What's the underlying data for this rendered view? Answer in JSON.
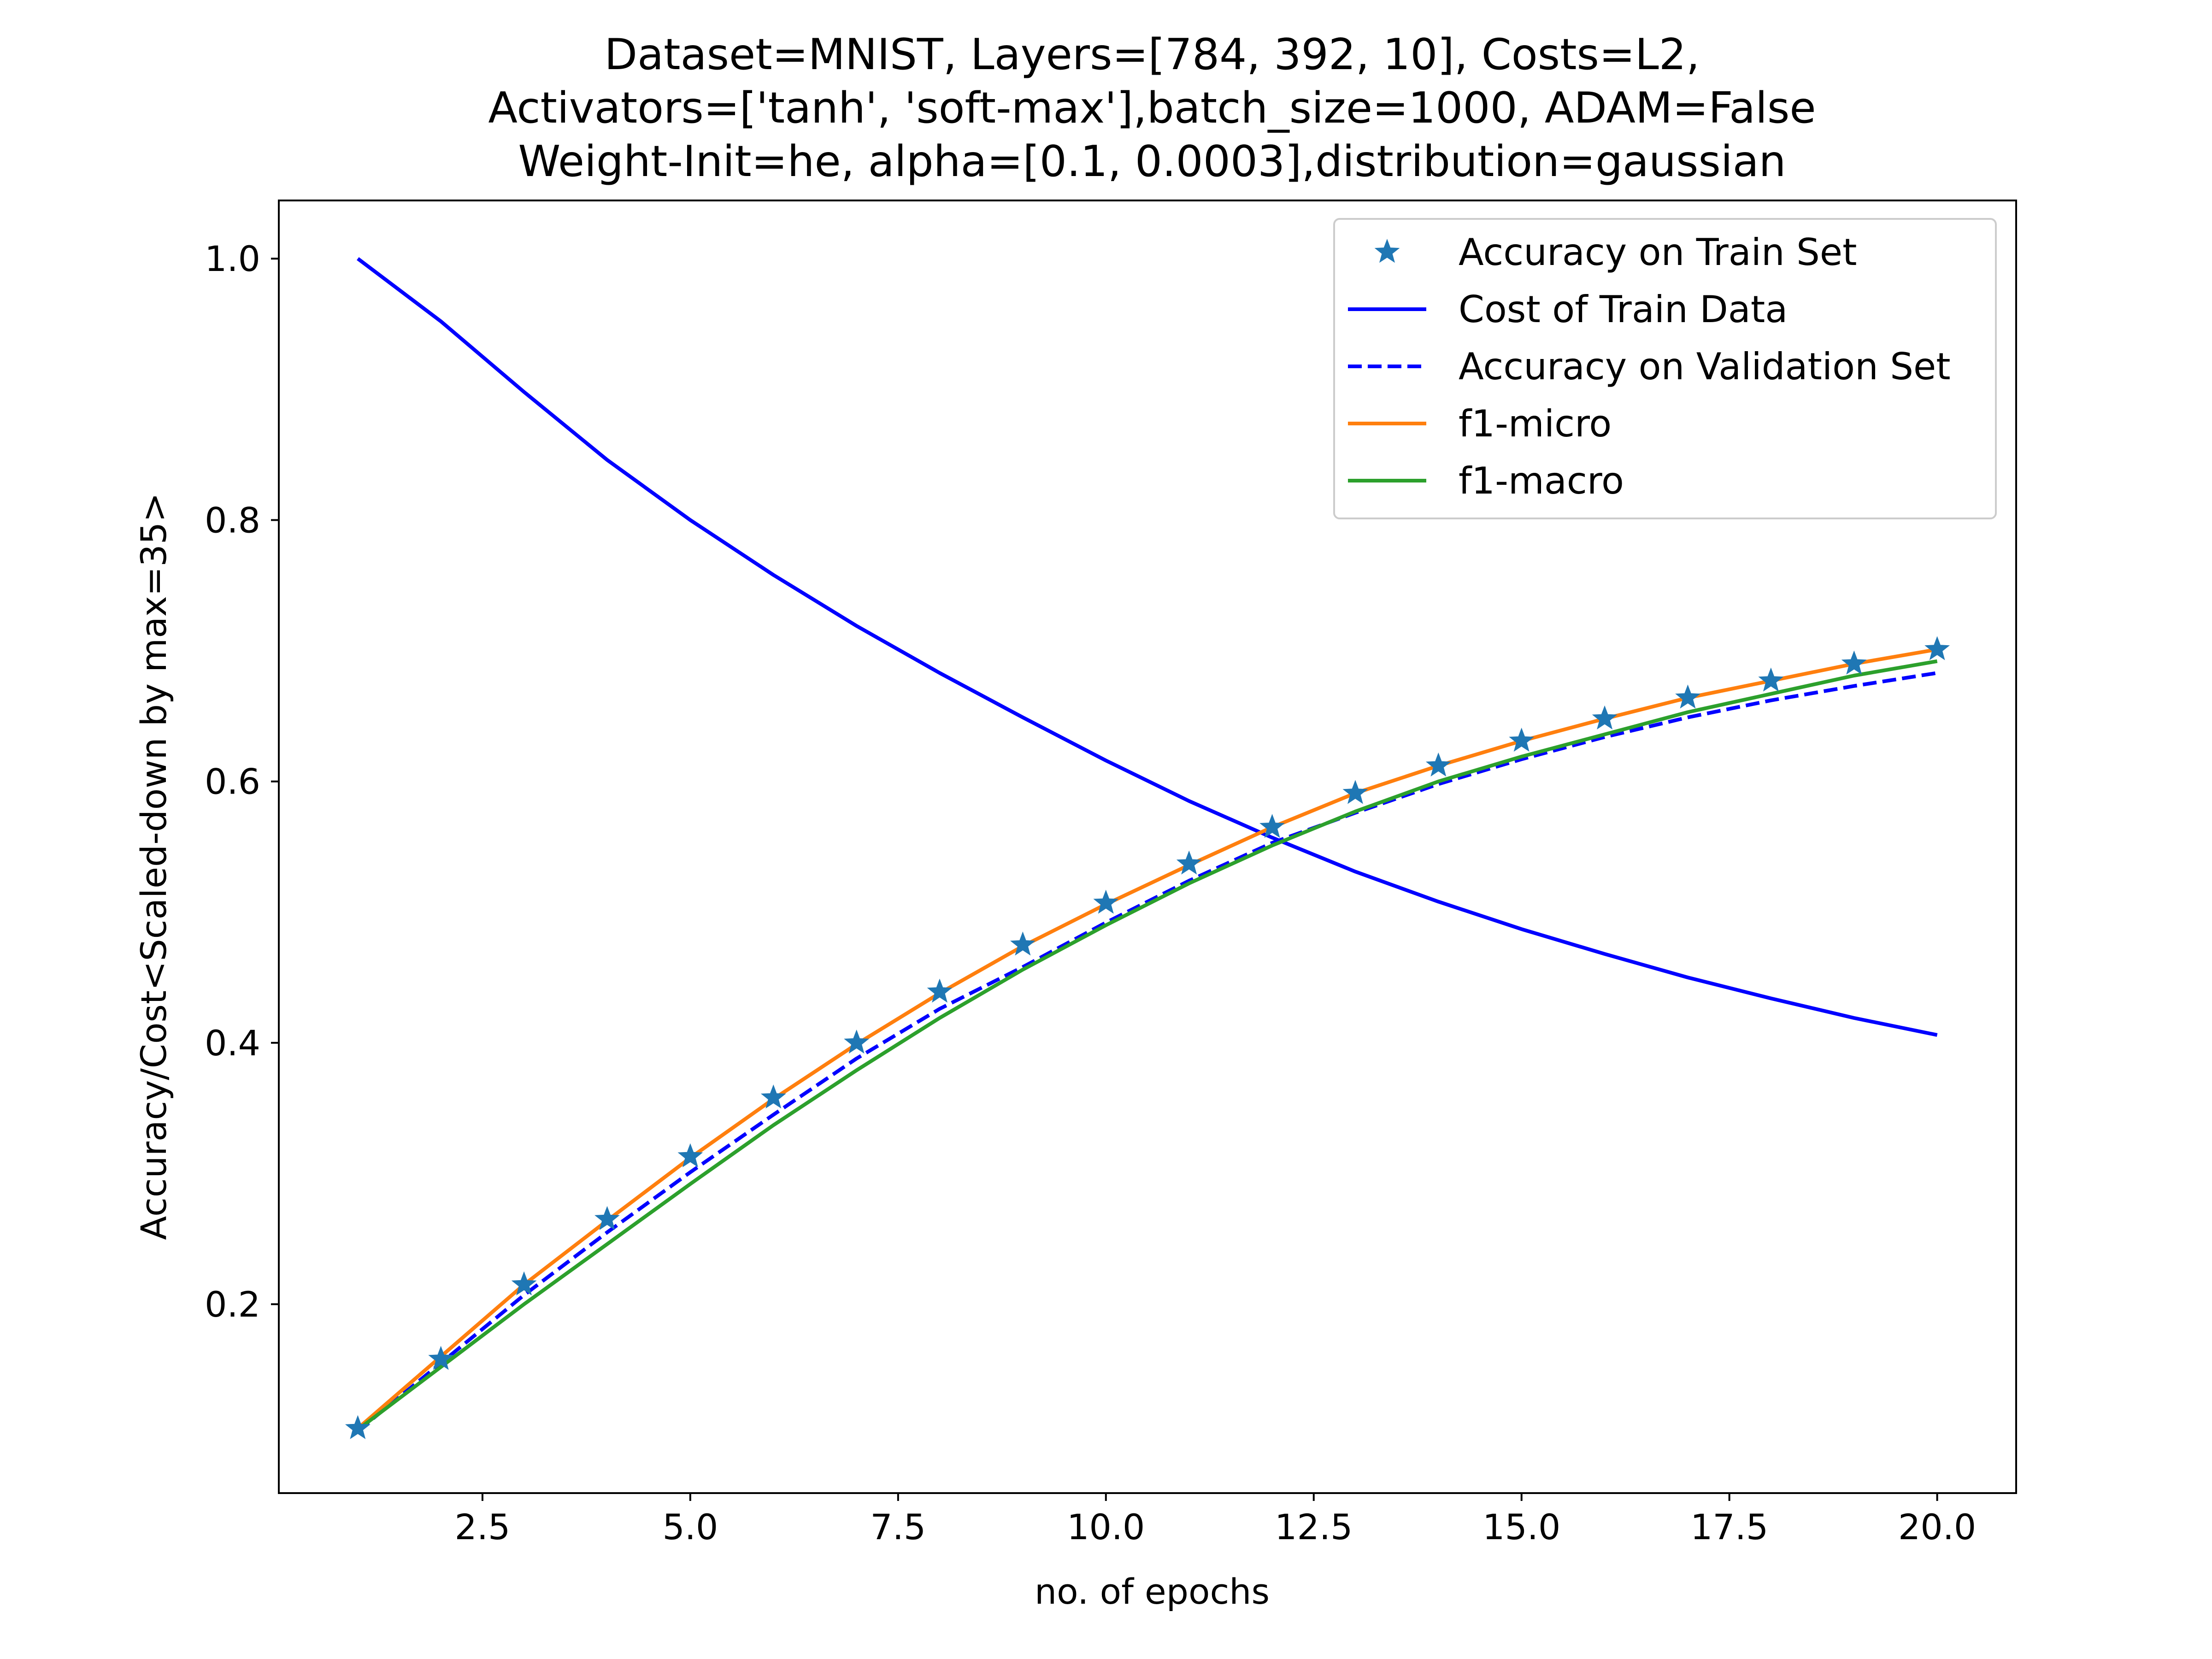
{
  "chart_data": {
    "type": "line",
    "title_lines": [
      "Dataset=MNIST, Layers=[784, 392, 10], Costs=L2,",
      "Activators=['tanh', 'soft-max'],batch_size=1000, ADAM=False",
      "Weight-Init=he, alpha=[0.1, 0.0003],distribution=gaussian"
    ],
    "xlabel": "no. of epochs",
    "ylabel": "Accuracy/Cost<Scaled-down by max=35>",
    "xlim": [
      0.05,
      20.95
    ],
    "ylim": [
      0.0555,
      1.0445
    ],
    "x_ticks": [
      2.5,
      5.0,
      7.5,
      10.0,
      12.5,
      15.0,
      17.5,
      20.0
    ],
    "x_tick_labels": [
      "2.5",
      "5.0",
      "7.5",
      "10.0",
      "12.5",
      "15.0",
      "17.5",
      "20.0"
    ],
    "y_ticks": [
      0.2,
      0.4,
      0.6,
      0.8,
      1.0
    ],
    "y_tick_labels": [
      "0.2",
      "0.4",
      "0.6",
      "0.8",
      "1.0"
    ],
    "grid": false,
    "legend_position": "top-right",
    "x": [
      1,
      2,
      3,
      4,
      5,
      6,
      7,
      8,
      9,
      10,
      11,
      12,
      13,
      14,
      15,
      16,
      17,
      18,
      19,
      20
    ],
    "series": [
      {
        "name": "Accuracy on Train Set",
        "color": "#1f77b4",
        "style": "star-markers",
        "values": [
          0.105,
          0.158,
          0.215,
          0.265,
          0.313,
          0.358,
          0.4,
          0.439,
          0.475,
          0.507,
          0.537,
          0.565,
          0.591,
          0.612,
          0.631,
          0.648,
          0.664,
          0.677,
          0.69,
          0.701
        ]
      },
      {
        "name": "Cost of Train Data",
        "color": "#0000ff",
        "style": "solid",
        "values": [
          1.0,
          0.952,
          0.898,
          0.846,
          0.8,
          0.758,
          0.719,
          0.683,
          0.649,
          0.616,
          0.585,
          0.557,
          0.531,
          0.508,
          0.487,
          0.468,
          0.45,
          0.434,
          0.419,
          0.406
        ]
      },
      {
        "name": "Accuracy on Validation Set",
        "color": "#0000ff",
        "style": "dashed",
        "values": [
          0.103,
          0.155,
          0.207,
          0.255,
          0.301,
          0.345,
          0.388,
          0.426,
          0.458,
          0.492,
          0.524,
          0.553,
          0.576,
          0.598,
          0.617,
          0.634,
          0.649,
          0.662,
          0.673,
          0.683
        ]
      },
      {
        "name": "f1-micro",
        "color": "#ff7f0e",
        "style": "solid",
        "values": [
          0.105,
          0.16,
          0.215,
          0.264,
          0.312,
          0.357,
          0.399,
          0.438,
          0.474,
          0.506,
          0.536,
          0.565,
          0.591,
          0.612,
          0.631,
          0.648,
          0.664,
          0.677,
          0.69,
          0.701
        ]
      },
      {
        "name": "f1-macro",
        "color": "#2ca02c",
        "style": "solid",
        "values": [
          0.104,
          0.152,
          0.2,
          0.246,
          0.292,
          0.337,
          0.379,
          0.419,
          0.456,
          0.49,
          0.522,
          0.551,
          0.577,
          0.6,
          0.619,
          0.636,
          0.653,
          0.667,
          0.681,
          0.692
        ]
      }
    ]
  }
}
